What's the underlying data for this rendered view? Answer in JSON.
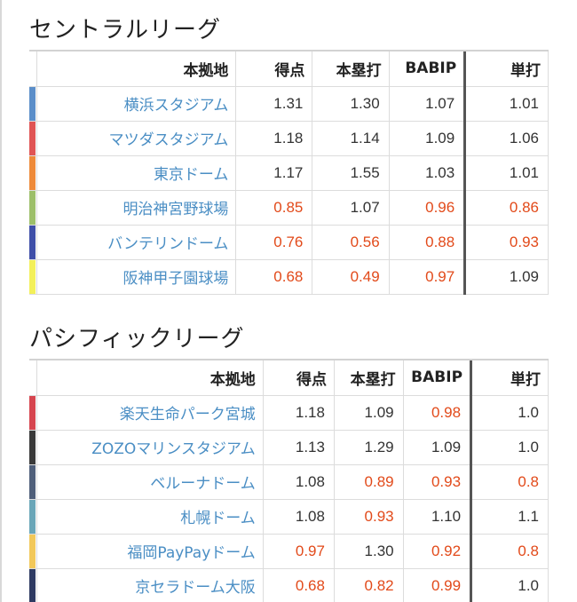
{
  "central": {
    "title": "セントラルリーグ",
    "headers": [
      "本拠地",
      "得点",
      "本塁打",
      "BABIP",
      "単打"
    ],
    "rows": [
      {
        "name": "横浜スタジアム",
        "color": "#5b8ec9",
        "values": [
          "1.31",
          "1.30",
          "1.07",
          "1.01"
        ],
        "low": [
          false,
          false,
          false,
          false
        ]
      },
      {
        "name": "マツダスタジアム",
        "color": "#e05454",
        "values": [
          "1.18",
          "1.14",
          "1.09",
          "1.06"
        ],
        "low": [
          false,
          false,
          false,
          false
        ]
      },
      {
        "name": "東京ドーム",
        "color": "#ee8a3a",
        "values": [
          "1.17",
          "1.55",
          "1.03",
          "1.01"
        ],
        "low": [
          false,
          false,
          false,
          false
        ]
      },
      {
        "name": "明治神宮野球場",
        "color": "#9dbf6a",
        "values": [
          "0.85",
          "1.07",
          "0.96",
          "0.86"
        ],
        "low": [
          true,
          false,
          true,
          true
        ]
      },
      {
        "name": "バンテリンドーム",
        "color": "#3f4fa8",
        "values": [
          "0.76",
          "0.56",
          "0.88",
          "0.93"
        ],
        "low": [
          true,
          true,
          true,
          true
        ]
      },
      {
        "name": "阪神甲子園球場",
        "color": "#f3f05a",
        "values": [
          "0.68",
          "0.49",
          "0.97",
          "1.09"
        ],
        "low": [
          true,
          true,
          true,
          false
        ]
      }
    ]
  },
  "pacific": {
    "title": "パシフィックリーグ",
    "headers": [
      "本拠地",
      "得点",
      "本塁打",
      "BABIP",
      "単打"
    ],
    "rows": [
      {
        "name": "楽天生命パーク宮城",
        "color": "#d6454f",
        "values": [
          "1.18",
          "1.09",
          "0.98",
          "1.0"
        ],
        "low": [
          false,
          false,
          true,
          false
        ]
      },
      {
        "name": "ZOZOマリンスタジアム",
        "color": "#3a3a3a",
        "values": [
          "1.13",
          "1.29",
          "1.09",
          "1.0"
        ],
        "low": [
          false,
          false,
          false,
          false
        ]
      },
      {
        "name": "ベルーナドーム",
        "color": "#4f5f7a",
        "values": [
          "1.08",
          "0.89",
          "0.93",
          "0.8"
        ],
        "low": [
          false,
          true,
          true,
          true
        ]
      },
      {
        "name": "札幌ドーム",
        "color": "#6aa6b8",
        "values": [
          "1.08",
          "0.93",
          "1.10",
          "1.1"
        ],
        "low": [
          false,
          true,
          false,
          false
        ]
      },
      {
        "name": "福岡PayPayドーム",
        "color": "#f2c85a",
        "values": [
          "0.97",
          "1.30",
          "0.92",
          "0.8"
        ],
        "low": [
          true,
          false,
          true,
          true
        ]
      },
      {
        "name": "京セラドーム大阪",
        "color": "#2e3a62",
        "values": [
          "0.68",
          "0.82",
          "0.99",
          "1.0"
        ],
        "low": [
          true,
          true,
          true,
          false
        ]
      }
    ]
  }
}
